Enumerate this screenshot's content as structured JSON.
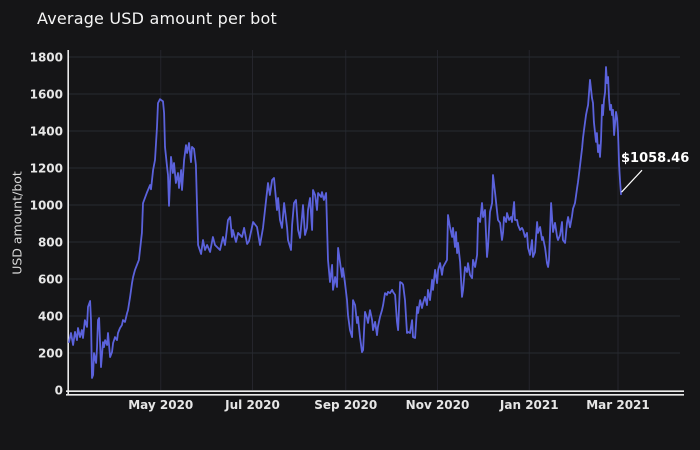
{
  "style": {
    "background": "#151517",
    "line_color": "#5b62dc",
    "h_grid_color": "#262b31",
    "v_grid_color": "#25252c",
    "axis_color": "#e9e9e9",
    "tick_label_color": "#e6e6e6",
    "title_color": "#f5f5f5"
  },
  "chart_data": {
    "type": "line",
    "title": "Average USD amount per bot",
    "xlabel": "",
    "ylabel": "USD amount/bot",
    "ylim": [
      0,
      1800
    ],
    "x_unit": "days since 2020-03-01",
    "grid": true,
    "legend": false,
    "yticks": [
      0,
      200,
      400,
      600,
      800,
      1000,
      1200,
      1400,
      1600,
      1800
    ],
    "xticks": [
      {
        "day": 61,
        "label": "May 2020"
      },
      {
        "day": 122,
        "label": "Jul 2020"
      },
      {
        "day": 184,
        "label": "Sep 2020"
      },
      {
        "day": 245,
        "label": "Nov 2020"
      },
      {
        "day": 306,
        "label": "Jan 2021"
      },
      {
        "day": 365,
        "label": "Mar 2021"
      }
    ],
    "annotation": {
      "label": "$1058.46",
      "day": 367,
      "value": 1058.46
    },
    "points": [
      [
        0,
        259
      ],
      [
        1.3,
        308
      ],
      [
        2.7,
        243
      ],
      [
        4,
        314
      ],
      [
        5.3,
        270
      ],
      [
        6,
        335
      ],
      [
        7.3,
        286
      ],
      [
        8.6,
        324
      ],
      [
        9.3,
        281
      ],
      [
        10.6,
        378
      ],
      [
        12,
        341
      ],
      [
        12.6,
        449
      ],
      [
        14,
        481
      ],
      [
        14.6,
        378
      ],
      [
        15.3,
        65
      ],
      [
        16,
        81
      ],
      [
        16.6,
        200
      ],
      [
        18,
        146
      ],
      [
        18.6,
        227
      ],
      [
        19.3,
        378
      ],
      [
        20,
        389
      ],
      [
        21.3,
        124
      ],
      [
        22.6,
        259
      ],
      [
        23.3,
        232
      ],
      [
        24,
        270
      ],
      [
        25.3,
        243
      ],
      [
        25.9,
        308
      ],
      [
        27.3,
        178
      ],
      [
        28.6,
        205
      ],
      [
        29.3,
        254
      ],
      [
        30.6,
        286
      ],
      [
        31.9,
        270
      ],
      [
        32.6,
        308
      ],
      [
        33.9,
        335
      ],
      [
        35.2,
        351
      ],
      [
        35.9,
        378
      ],
      [
        37.2,
        368
      ],
      [
        38.6,
        416
      ],
      [
        39.2,
        432
      ],
      [
        40.6,
        503
      ],
      [
        41.9,
        578
      ],
      [
        42.6,
        611
      ],
      [
        43.9,
        649
      ],
      [
        46.5,
        703
      ],
      [
        48.5,
        849
      ],
      [
        49.2,
        1010
      ],
      [
        51.9,
        1070
      ],
      [
        53.9,
        1108
      ],
      [
        54.5,
        1085
      ],
      [
        55.9,
        1189
      ],
      [
        57.2,
        1243
      ],
      [
        58.5,
        1422
      ],
      [
        59.2,
        1551
      ],
      [
        60.5,
        1572
      ],
      [
        62.5,
        1560
      ],
      [
        63.2,
        1497
      ],
      [
        63.8,
        1314
      ],
      [
        65.2,
        1205
      ],
      [
        65.8,
        1162
      ],
      [
        66.5,
        995
      ],
      [
        67.8,
        1260
      ],
      [
        69.1,
        1173
      ],
      [
        69.8,
        1227
      ],
      [
        71.1,
        1119
      ],
      [
        72.5,
        1173
      ],
      [
        73.1,
        1092
      ],
      [
        74.5,
        1189
      ],
      [
        75.1,
        1081
      ],
      [
        76.5,
        1243
      ],
      [
        77.8,
        1324
      ],
      [
        78.5,
        1281
      ],
      [
        79.8,
        1335
      ],
      [
        81.1,
        1232
      ],
      [
        81.8,
        1314
      ],
      [
        83.1,
        1303
      ],
      [
        84.4,
        1216
      ],
      [
        85.8,
        784
      ],
      [
        87.8,
        735
      ],
      [
        89.1,
        811
      ],
      [
        90.4,
        757
      ],
      [
        91.8,
        784
      ],
      [
        93.8,
        746
      ],
      [
        95.7,
        827
      ],
      [
        97.1,
        784
      ],
      [
        100.4,
        757
      ],
      [
        102.4,
        827
      ],
      [
        103.7,
        784
      ],
      [
        105.7,
        919
      ],
      [
        107.1,
        935
      ],
      [
        108.4,
        827
      ],
      [
        109,
        865
      ],
      [
        111,
        800
      ],
      [
        112.4,
        849
      ],
      [
        115,
        827
      ],
      [
        116.4,
        876
      ],
      [
        118.4,
        789
      ],
      [
        119.7,
        805
      ],
      [
        122.4,
        908
      ],
      [
        125,
        881
      ],
      [
        127,
        784
      ],
      [
        129,
        876
      ],
      [
        132.3,
        1119
      ],
      [
        133.6,
        1054
      ],
      [
        135,
        1135
      ],
      [
        136.3,
        1146
      ],
      [
        138.3,
        973
      ],
      [
        139,
        1038
      ],
      [
        140.3,
        919
      ],
      [
        141.6,
        876
      ],
      [
        143,
        1011
      ],
      [
        145,
        876
      ],
      [
        145.6,
        811
      ],
      [
        147.6,
        757
      ],
      [
        148.3,
        892
      ],
      [
        149.6,
        1011
      ],
      [
        150.9,
        1027
      ],
      [
        152.3,
        865
      ],
      [
        153.6,
        822
      ],
      [
        154.9,
        935
      ],
      [
        155.6,
        1000
      ],
      [
        156.9,
        838
      ],
      [
        158.2,
        876
      ],
      [
        158.9,
        973
      ],
      [
        160.2,
        1038
      ],
      [
        161.6,
        865
      ],
      [
        162.2,
        1081
      ],
      [
        163.6,
        1054
      ],
      [
        164.9,
        973
      ],
      [
        165.6,
        1065
      ],
      [
        167.6,
        1043
      ],
      [
        168.2,
        1070
      ],
      [
        169.5,
        1027
      ],
      [
        170.9,
        1065
      ],
      [
        172.2,
        703
      ],
      [
        173.5,
        584
      ],
      [
        174.9,
        676
      ],
      [
        175.5,
        541
      ],
      [
        176.9,
        611
      ],
      [
        178.2,
        557
      ],
      [
        178.9,
        768
      ],
      [
        180.2,
        692
      ],
      [
        181.5,
        611
      ],
      [
        182.2,
        659
      ],
      [
        183.5,
        578
      ],
      [
        184.8,
        486
      ],
      [
        185.5,
        405
      ],
      [
        186.8,
        324
      ],
      [
        188.2,
        286
      ],
      [
        188.8,
        486
      ],
      [
        190.2,
        459
      ],
      [
        191.5,
        362
      ],
      [
        192.1,
        395
      ],
      [
        193.5,
        286
      ],
      [
        194.8,
        205
      ],
      [
        195.5,
        216
      ],
      [
        196.8,
        422
      ],
      [
        198.1,
        389
      ],
      [
        198.8,
        362
      ],
      [
        200.1,
        432
      ],
      [
        201.5,
        378
      ],
      [
        202.1,
        324
      ],
      [
        203.5,
        368
      ],
      [
        204.8,
        297
      ],
      [
        205.4,
        341
      ],
      [
        206.8,
        395
      ],
      [
        208.1,
        432
      ],
      [
        208.8,
        459
      ],
      [
        210.1,
        524
      ],
      [
        211.4,
        514
      ],
      [
        212.1,
        530
      ],
      [
        213.4,
        524
      ],
      [
        214.8,
        541
      ],
      [
        215.4,
        530
      ],
      [
        216.8,
        514
      ],
      [
        218.1,
        368
      ],
      [
        218.8,
        324
      ],
      [
        220.1,
        584
      ],
      [
        221.4,
        578
      ],
      [
        222.1,
        568
      ],
      [
        223.4,
        486
      ],
      [
        224.7,
        308
      ],
      [
        225.4,
        314
      ],
      [
        226.7,
        308
      ],
      [
        228.1,
        378
      ],
      [
        228.7,
        286
      ],
      [
        230.1,
        281
      ],
      [
        231.4,
        449
      ],
      [
        232.1,
        416
      ],
      [
        233.4,
        486
      ],
      [
        234.7,
        443
      ],
      [
        235.4,
        470
      ],
      [
        236.7,
        503
      ],
      [
        238,
        459
      ],
      [
        238.7,
        541
      ],
      [
        240,
        486
      ],
      [
        241.4,
        595
      ],
      [
        242,
        541
      ],
      [
        243.4,
        649
      ],
      [
        244.7,
        578
      ],
      [
        245.4,
        649
      ],
      [
        246.7,
        686
      ],
      [
        248,
        622
      ],
      [
        248.7,
        665
      ],
      [
        251.3,
        703
      ],
      [
        252,
        946
      ],
      [
        253.3,
        881
      ],
      [
        254.7,
        827
      ],
      [
        255.3,
        876
      ],
      [
        256.6,
        773
      ],
      [
        257.3,
        854
      ],
      [
        258,
        740
      ],
      [
        258.6,
        795
      ],
      [
        260,
        692
      ],
      [
        261.3,
        503
      ],
      [
        262,
        541
      ],
      [
        263.3,
        665
      ],
      [
        264.6,
        638
      ],
      [
        265.3,
        686
      ],
      [
        266.6,
        622
      ],
      [
        268,
        605
      ],
      [
        268.6,
        703
      ],
      [
        270,
        665
      ],
      [
        271.3,
        730
      ],
      [
        272,
        930
      ],
      [
        273.3,
        908
      ],
      [
        274.6,
        1011
      ],
      [
        275.3,
        935
      ],
      [
        276.6,
        973
      ],
      [
        277.9,
        719
      ],
      [
        278.6,
        773
      ],
      [
        279.9,
        962
      ],
      [
        281.3,
        1011
      ],
      [
        281.9,
        1162
      ],
      [
        283.3,
        1065
      ],
      [
        284.6,
        962
      ],
      [
        285.2,
        919
      ],
      [
        286.6,
        903
      ],
      [
        287.9,
        811
      ],
      [
        288.6,
        854
      ],
      [
        289.2,
        935
      ],
      [
        290.6,
        908
      ],
      [
        291.2,
        957
      ],
      [
        292.6,
        919
      ],
      [
        293.9,
        935
      ],
      [
        294.5,
        908
      ],
      [
        295.9,
        1016
      ],
      [
        296.5,
        919
      ],
      [
        297.9,
        919
      ],
      [
        298.5,
        892
      ],
      [
        299.9,
        865
      ],
      [
        301.2,
        876
      ],
      [
        301.9,
        865
      ],
      [
        303.2,
        827
      ],
      [
        304.5,
        849
      ],
      [
        305.2,
        768
      ],
      [
        306.5,
        730
      ],
      [
        307.8,
        811
      ],
      [
        308.5,
        719
      ],
      [
        309.8,
        746
      ],
      [
        311.2,
        908
      ],
      [
        311.8,
        849
      ],
      [
        313.2,
        881
      ],
      [
        314.5,
        811
      ],
      [
        315.1,
        827
      ],
      [
        316.5,
        768
      ],
      [
        317.8,
        686
      ],
      [
        318.5,
        665
      ],
      [
        319.1,
        703
      ],
      [
        320.5,
        1011
      ],
      [
        321.8,
        854
      ],
      [
        323.1,
        903
      ],
      [
        324.5,
        827
      ],
      [
        325.1,
        811
      ],
      [
        326.5,
        838
      ],
      [
        327.8,
        908
      ],
      [
        328.4,
        811
      ],
      [
        329.8,
        795
      ],
      [
        331.1,
        903
      ],
      [
        331.8,
        935
      ],
      [
        333.1,
        880
      ],
      [
        334.4,
        940
      ],
      [
        335.1,
        980
      ],
      [
        336.4,
        1011
      ],
      [
        337.8,
        1092
      ],
      [
        338.4,
        1124
      ],
      [
        339.8,
        1216
      ],
      [
        341.1,
        1308
      ],
      [
        341.7,
        1362
      ],
      [
        342.4,
        1405
      ],
      [
        343.7,
        1486
      ],
      [
        344.4,
        1514
      ],
      [
        345.1,
        1541
      ],
      [
        346.4,
        1676
      ],
      [
        347.7,
        1578
      ],
      [
        348.4,
        1551
      ],
      [
        349,
        1449
      ],
      [
        350.4,
        1341
      ],
      [
        351,
        1389
      ],
      [
        351.7,
        1286
      ],
      [
        352.4,
        1324
      ],
      [
        353,
        1260
      ],
      [
        353.7,
        1351
      ],
      [
        354.4,
        1541
      ],
      [
        355,
        1486
      ],
      [
        355.7,
        1568
      ],
      [
        356.4,
        1611
      ],
      [
        357,
        1746
      ],
      [
        357.7,
        1659
      ],
      [
        358.4,
        1692
      ],
      [
        359,
        1578
      ],
      [
        359.7,
        1514
      ],
      [
        360.4,
        1541
      ],
      [
        361,
        1486
      ],
      [
        361.7,
        1514
      ],
      [
        362.4,
        1378
      ],
      [
        363.7,
        1503
      ],
      [
        364.4,
        1470
      ],
      [
        365,
        1395
      ],
      [
        365.7,
        1216
      ],
      [
        366.4,
        1124
      ],
      [
        367,
        1058.46
      ]
    ]
  }
}
